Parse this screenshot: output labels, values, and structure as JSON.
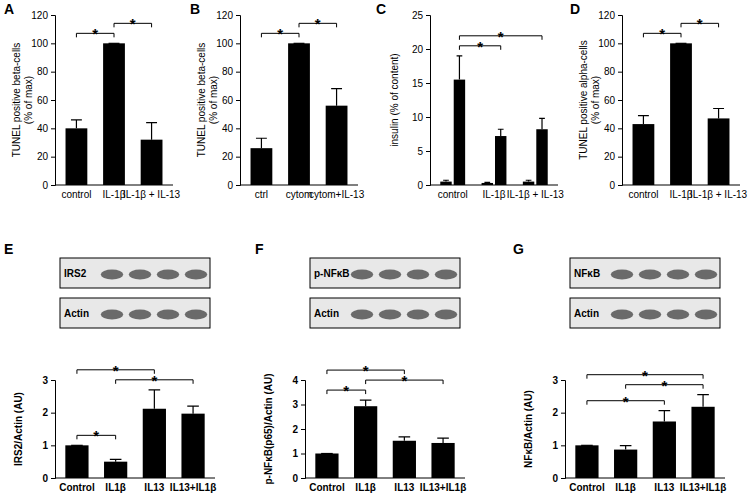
{
  "chart_data": [
    {
      "type": "bar",
      "panel_label": "A",
      "ylabel": [
        "TUNEL positive beta-cells",
        "(% of max)"
      ],
      "categories": [
        "control",
        "IL-1β",
        "IL-1β + IL-13"
      ],
      "series": [
        {
          "color": "#000000",
          "values": [
            40,
            100,
            32
          ],
          "errors": [
            6,
            0,
            12
          ]
        }
      ],
      "ylim": [
        0,
        120
      ],
      "yticks": [
        0,
        20,
        40,
        60,
        80,
        100,
        120
      ],
      "annotations": [
        {
          "from": 0,
          "to": 1,
          "text": "*"
        },
        {
          "from": 1,
          "to": 2,
          "text": "*"
        }
      ]
    },
    {
      "type": "bar",
      "panel_label": "B",
      "ylabel": [
        "TUNEL positive beta-cells",
        "(% of max)"
      ],
      "categories": [
        "ctrl",
        "cytom",
        "cytom+IL-13"
      ],
      "series": [
        {
          "color": "#000000",
          "values": [
            26,
            100,
            56
          ],
          "errors": [
            7,
            0,
            12
          ]
        }
      ],
      "ylim": [
        0,
        120
      ],
      "yticks": [
        0,
        20,
        40,
        60,
        80,
        100,
        120
      ],
      "annotations": [
        {
          "from": 0,
          "to": 1,
          "text": "*"
        },
        {
          "from": 1,
          "to": 2,
          "text": "*"
        }
      ]
    },
    {
      "type": "bar",
      "panel_label": "C",
      "ylabel": "insulin (% of content)",
      "categories": [
        "control",
        "IL-1β",
        "IL-1β + IL-13"
      ],
      "series": [
        {
          "color": "#000000",
          "values": [
            0.5,
            0.3,
            0.5
          ],
          "errors": [
            0.2,
            0.1,
            0.2
          ]
        },
        {
          "color": "#000000",
          "values": [
            15.5,
            7.2,
            8.2
          ],
          "errors": [
            3.5,
            1.0,
            1.6
          ]
        }
      ],
      "ylim": [
        0,
        25
      ],
      "yticks": [
        0,
        5,
        10,
        15,
        20,
        25
      ],
      "annotations": [
        {
          "from": 0,
          "to": 1,
          "series": 1,
          "text": "*"
        },
        {
          "from": 0,
          "to": 2,
          "series": 1,
          "text": "*"
        }
      ]
    },
    {
      "type": "bar",
      "panel_label": "D",
      "ylabel": [
        "TUNEL positive alpha-cells",
        "(% of max)"
      ],
      "categories": [
        "control",
        "IL-1β",
        "IL-1β + IL-13"
      ],
      "series": [
        {
          "color": "#000000",
          "values": [
            43,
            100,
            47
          ],
          "errors": [
            6,
            0,
            7
          ]
        }
      ],
      "ylim": [
        0,
        120
      ],
      "yticks": [
        0,
        20,
        40,
        60,
        80,
        100,
        120
      ],
      "annotations": [
        {
          "from": 0,
          "to": 1,
          "text": "*"
        },
        {
          "from": 1,
          "to": 2,
          "text": "*"
        }
      ]
    },
    {
      "type": "bar",
      "panel_label": "E",
      "blot_labels": [
        "IRS2",
        "Actin"
      ],
      "ylabel": "IRS2/Actin (AU)",
      "categories": [
        "Control",
        "IL1β",
        "IL13",
        "IL13+IL1β"
      ],
      "series": [
        {
          "color": "#000000",
          "values": [
            1,
            0.5,
            2.12,
            1.97
          ],
          "errors": [
            0,
            0.07,
            0.58,
            0.23
          ]
        }
      ],
      "ylim": [
        0,
        3
      ],
      "yticks": [
        0,
        1,
        2,
        3
      ],
      "annotations": [
        {
          "from": 0,
          "to": 1,
          "text": "*"
        },
        {
          "from": 1,
          "to": 3,
          "text": "*"
        },
        {
          "from": 0,
          "to": 2,
          "text": "*"
        }
      ]
    },
    {
      "type": "bar",
      "panel_label": "F",
      "blot_labels": [
        "p-NFκB",
        "Actin"
      ],
      "ylabel": "p-NFκB(p65)/Actin (AU)",
      "categories": [
        "Control",
        "IL1β",
        "IL13",
        "IL13+IL1β"
      ],
      "series": [
        {
          "color": "#000000",
          "values": [
            1,
            2.93,
            1.52,
            1.43
          ],
          "errors": [
            0,
            0.25,
            0.16,
            0.2
          ]
        }
      ],
      "ylim": [
        0,
        4
      ],
      "yticks": [
        0,
        1,
        2,
        3,
        4
      ],
      "annotations": [
        {
          "from": 0,
          "to": 1,
          "text": "*"
        },
        {
          "from": 1,
          "to": 3,
          "text": "*"
        },
        {
          "from": 0,
          "to": 2,
          "text": "*"
        }
      ]
    },
    {
      "type": "bar",
      "panel_label": "G",
      "blot_labels": [
        "NFκB",
        "Actin"
      ],
      "ylabel": "NFκB/Actin (AU)",
      "categories": [
        "Control",
        "IL1β",
        "IL13",
        "IL13+IL1β"
      ],
      "series": [
        {
          "color": "#000000",
          "values": [
            1,
            0.87,
            1.73,
            2.18
          ],
          "errors": [
            0,
            0.12,
            0.33,
            0.37
          ]
        }
      ],
      "ylim": [
        0,
        3
      ],
      "yticks": [
        0,
        1,
        2,
        3
      ],
      "annotations": [
        {
          "from": 0,
          "to": 2,
          "text": "*"
        },
        {
          "from": 1,
          "to": 3,
          "text": "*"
        },
        {
          "from": 0,
          "to": 3,
          "text": "*"
        }
      ]
    }
  ]
}
